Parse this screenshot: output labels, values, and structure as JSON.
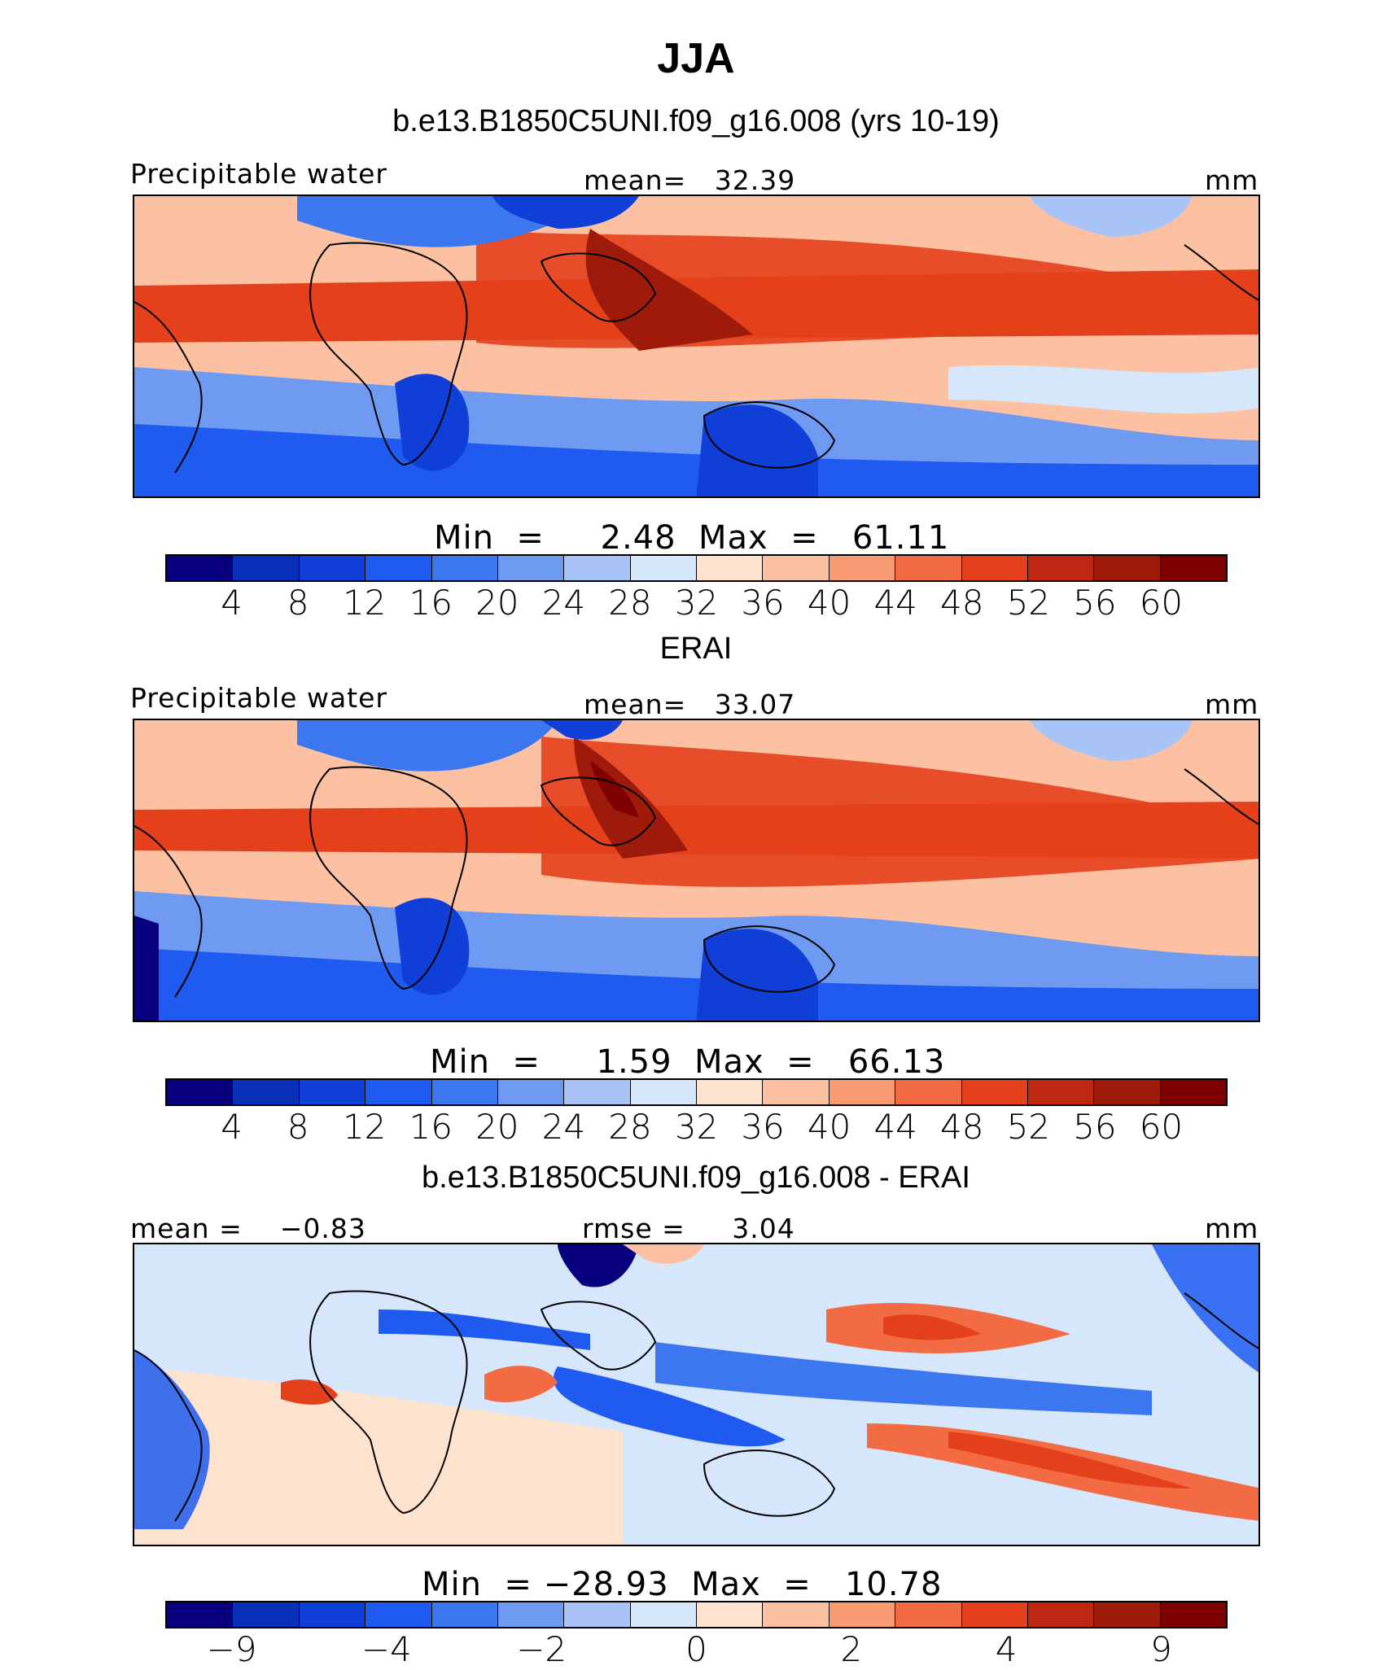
{
  "chart_data": [
    {
      "type": "heatmap",
      "title": "JJA",
      "subtitle": "b.e13.B1850C5UNI.f09_g16.008 (yrs 10-19)",
      "variable_label": "Precipitable water",
      "units": "mm",
      "mean_label": "mean=",
      "mean_value": "32.39",
      "min_label": "Min",
      "max_label": "Max",
      "eq": "=",
      "min_value": "2.48",
      "max_value": "61.11",
      "colorbar_ticks": [
        "4",
        "8",
        "12",
        "16",
        "20",
        "24",
        "28",
        "32",
        "36",
        "40",
        "44",
        "48",
        "52",
        "56",
        "60"
      ],
      "colors": [
        "#08007f",
        "#0a2fb8",
        "#0f3fd6",
        "#1f5bf0",
        "#3d77f0",
        "#6f9af2",
        "#a8c4f7",
        "#d6e6fb",
        "#fde3cd",
        "#fbc1a2",
        "#f89a72",
        "#f36b42",
        "#e3401b",
        "#c02712",
        "#9e1b0c",
        "#7f0000"
      ]
    },
    {
      "type": "heatmap",
      "subtitle": "ERAI",
      "variable_label": "Precipitable water",
      "units": "mm",
      "mean_label": "mean=",
      "mean_value": "33.07",
      "min_label": "Min",
      "max_label": "Max",
      "eq": "=",
      "min_value": "1.59",
      "max_value": "66.13",
      "colorbar_ticks": [
        "4",
        "8",
        "12",
        "16",
        "20",
        "24",
        "28",
        "32",
        "36",
        "40",
        "44",
        "48",
        "52",
        "56",
        "60"
      ],
      "colors": [
        "#08007f",
        "#0a2fb8",
        "#0f3fd6",
        "#1f5bf0",
        "#3d77f0",
        "#6f9af2",
        "#a8c4f7",
        "#d6e6fb",
        "#fde3cd",
        "#fbc1a2",
        "#f89a72",
        "#f36b42",
        "#e3401b",
        "#c02712",
        "#9e1b0c",
        "#7f0000"
      ]
    },
    {
      "type": "heatmap",
      "subtitle": "b.e13.B1850C5UNI.f09_g16.008 - ERAI",
      "units": "mm",
      "mean_label": "mean =",
      "mean_value": "−0.83",
      "rmse_label": "rmse =",
      "rmse_value": "3.04",
      "min_label": "Min",
      "max_label": "Max",
      "eq": "=",
      "min_value": "−28.93",
      "max_value": "10.78",
      "colorbar_ticks": [
        "−9",
        "−4",
        "−2",
        "0",
        "2",
        "4",
        "9"
      ],
      "colors": [
        "#08007f",
        "#0a2fb8",
        "#0f3fd6",
        "#1f5bf0",
        "#3d77f0",
        "#6f9af2",
        "#a8c4f7",
        "#d6e6fb",
        "#fde3cd",
        "#fbc1a2",
        "#f89a72",
        "#f36b42",
        "#e3401b",
        "#c02712",
        "#9e1b0c",
        "#7f0000"
      ]
    }
  ]
}
